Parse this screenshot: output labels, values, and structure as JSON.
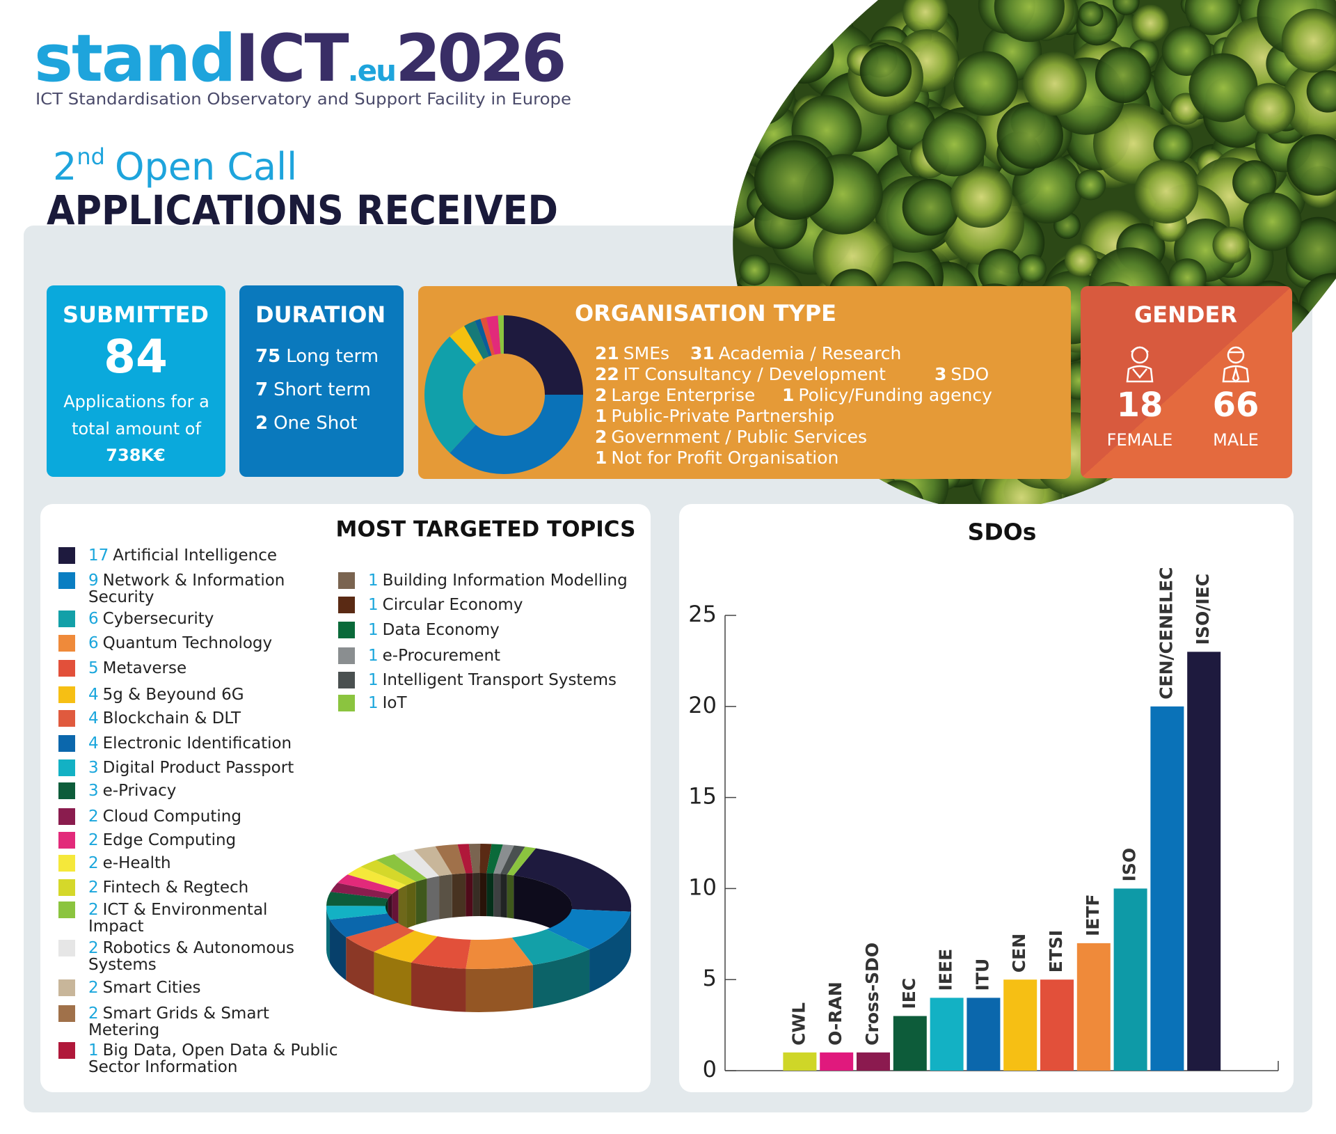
{
  "header": {
    "logo": [
      "stand",
      "ICT",
      ".eu",
      "2026"
    ],
    "tagline": "ICT Standardisation Observatory and Support Facility in Europe",
    "call_number": "2",
    "call_suffix": "nd",
    "call_text": "Open Call",
    "title": "APPLICATIONS RECEIVED"
  },
  "submitted": {
    "title": "SUBMITTED",
    "count": 84,
    "text": "Applications for a total amount of",
    "amount": "738K€"
  },
  "duration": {
    "title": "DURATION",
    "items": [
      {
        "value": 75,
        "label": "Long term"
      },
      {
        "value": 7,
        "label": "Short term"
      },
      {
        "value": 2,
        "label": "One Shot"
      }
    ]
  },
  "gender": {
    "title": "GENDER",
    "female": {
      "value": 18,
      "label": "FEMALE"
    },
    "male": {
      "value": 66,
      "label": "MALE"
    }
  },
  "chart_data": [
    {
      "type": "donut",
      "title": "ORGANISATION TYPE",
      "categories": [
        "SMEs",
        "Academia / Research",
        "IT Consultancy / Development",
        "SDO",
        "Large Enterprise",
        "Policy/Funding agency",
        "Public-Private Partnership",
        "Government / Public Services",
        "Not for Profit Organisation"
      ],
      "values": [
        21,
        31,
        22,
        3,
        2,
        1,
        1,
        2,
        1
      ],
      "colors": [
        "#1e1a3e",
        "#0a72b8",
        "#11a0aa",
        "#f5c010",
        "#167a78",
        "#0a5e9a",
        "#e2503a",
        "#e22a7a",
        "#8bc43f"
      ]
    },
    {
      "type": "donut3d",
      "title": "MOST TARGETED TOPICS",
      "categories": [
        "Artificial Intelligence",
        "Network & Information Security",
        "Cybersecurity",
        "Quantum Technology",
        "Metaverse",
        "5g & Beyound 6G",
        "Blockchain & DLT",
        "Electronic Identification",
        "Digital Product Passport",
        "e-Privacy",
        "Cloud Computing",
        "Edge Computing",
        "e-Health",
        "Fintech & Regtech",
        "ICT & Environmental Impact",
        "Robotics & Autonomous Systems",
        "Smart Cities",
        "Smart Grids & Smart Metering",
        "Big Data, Open Data & Public Sector Information",
        "Building Information Modelling",
        "Circular Economy",
        "Data Economy",
        "e-Procurement",
        "Intelligent Transport Systems",
        "IoT"
      ],
      "values": [
        17,
        9,
        6,
        6,
        5,
        4,
        4,
        4,
        3,
        3,
        2,
        2,
        2,
        2,
        2,
        2,
        2,
        2,
        1,
        1,
        1,
        1,
        1,
        1,
        1
      ],
      "colors": [
        "#1e1a3e",
        "#0a7ec2",
        "#13a0a8",
        "#ef8a3a",
        "#e2503a",
        "#f6bf14",
        "#e05a3e",
        "#0b67ac",
        "#13b1c4",
        "#0d5c3a",
        "#8a1c4e",
        "#e22a7a",
        "#f5e83a",
        "#d5d82a",
        "#8bc43f",
        "#e6e6e6",
        "#c8b69a",
        "#a0714a",
        "#b0183a",
        "#7a6450",
        "#5a2a14",
        "#0a6a3a",
        "#8a8e90",
        "#4a5050",
        "#8bc43f"
      ]
    },
    {
      "type": "bar",
      "title": "SDOs",
      "categories": [
        "CWL",
        "O-RAN",
        "Cross-SDO",
        "IEC",
        "IEEE",
        "ITU",
        "CEN",
        "ETSI",
        "IETF",
        "ISO",
        "CEN/CENELEC",
        "ISO/IEC"
      ],
      "values": [
        1,
        1,
        1,
        3,
        4,
        4,
        5,
        5,
        7,
        10,
        20,
        23
      ],
      "colors": [
        "#cfd628",
        "#e0197d",
        "#8b1a4f",
        "#0d5c3a",
        "#13b1c4",
        "#0b67ac",
        "#f6bf14",
        "#e2503a",
        "#ef8a3a",
        "#0e9aa7",
        "#0a72b8",
        "#1e1a3e"
      ],
      "ylim": [
        0,
        25
      ],
      "yticks": [
        0,
        5,
        10,
        15,
        20,
        25
      ]
    }
  ]
}
